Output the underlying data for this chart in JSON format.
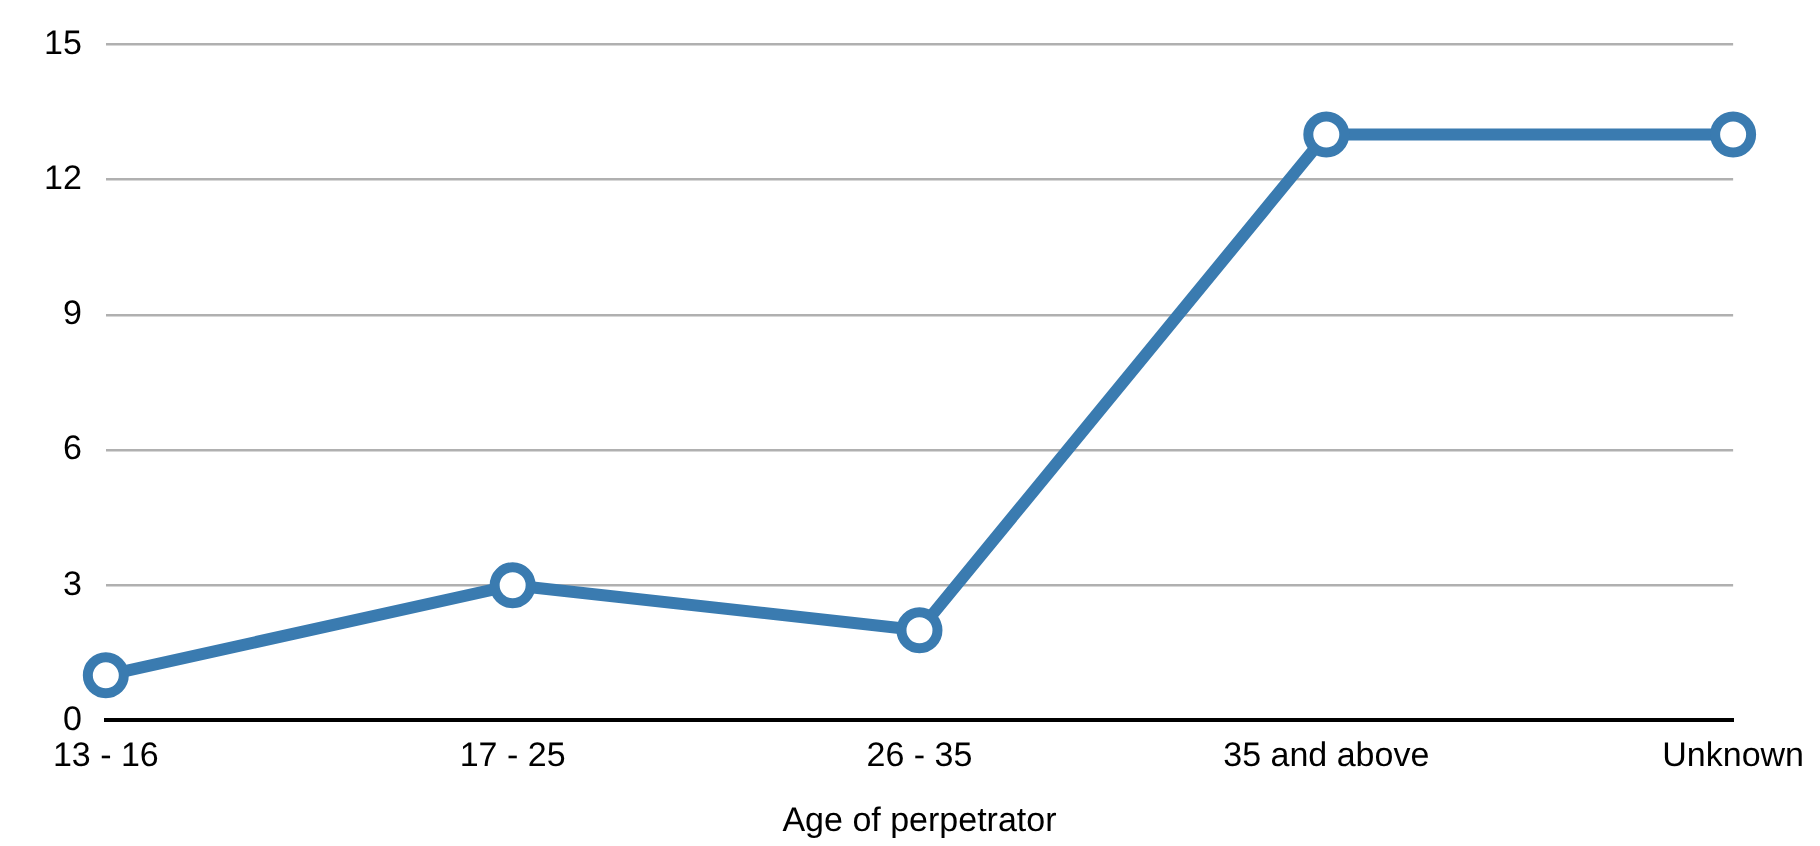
{
  "chart_data": {
    "type": "line",
    "xlabel": "Age of perpetrator",
    "categories": [
      "13 - 16",
      "17 - 25",
      "26 - 35",
      "35 and above",
      "Unknown"
    ],
    "values": [
      1,
      3,
      2,
      13,
      13
    ],
    "color": "#3a7bb0",
    "ylim": [
      0,
      15
    ],
    "yticks": [
      0,
      3,
      6,
      9,
      12,
      15
    ],
    "grid": "y",
    "marker": "circle",
    "legend": false
  }
}
